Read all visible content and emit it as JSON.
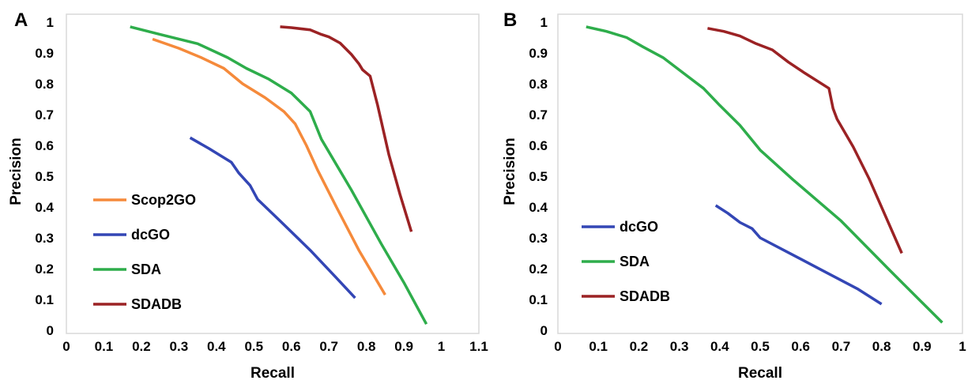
{
  "chart_data": [
    {
      "type": "line",
      "panel_label": "A",
      "xlabel": "Recall",
      "ylabel": "Precision",
      "xlim": [
        0,
        1.1
      ],
      "ylim": [
        0,
        1
      ],
      "x_ticks": [
        "0",
        "0.1",
        "0.2",
        "0.3",
        "0.4",
        "0.5",
        "0.6",
        "0.7",
        "0.8",
        "0.9",
        "1",
        "1.1"
      ],
      "y_ticks": [
        "0",
        "0.1",
        "0.2",
        "0.3",
        "0.4",
        "0.5",
        "0.6",
        "0.7",
        "0.8",
        "0.9",
        "1"
      ],
      "grid": false,
      "legend_position": "lower-left",
      "series": [
        {
          "name": "Scop2GO",
          "color": "#f58a3b",
          "points": [
            [
              0.23,
              0.945
            ],
            [
              0.3,
              0.915
            ],
            [
              0.36,
              0.885
            ],
            [
              0.42,
              0.85
            ],
            [
              0.47,
              0.8
            ],
            [
              0.53,
              0.755
            ],
            [
              0.58,
              0.71
            ],
            [
              0.61,
              0.67
            ],
            [
              0.64,
              0.6
            ],
            [
              0.67,
              0.52
            ],
            [
              0.72,
              0.4
            ],
            [
              0.78,
              0.26
            ],
            [
              0.85,
              0.115
            ]
          ]
        },
        {
          "name": "dcGO",
          "color": "#3346b5",
          "points": [
            [
              0.33,
              0.625
            ],
            [
              0.38,
              0.59
            ],
            [
              0.44,
              0.545
            ],
            [
              0.46,
              0.51
            ],
            [
              0.49,
              0.47
            ],
            [
              0.51,
              0.425
            ],
            [
              0.57,
              0.355
            ],
            [
              0.65,
              0.26
            ],
            [
              0.72,
              0.17
            ],
            [
              0.77,
              0.105
            ]
          ]
        },
        {
          "name": "SDA",
          "color": "#2ead4b",
          "points": [
            [
              0.17,
              0.985
            ],
            [
              0.25,
              0.96
            ],
            [
              0.35,
              0.93
            ],
            [
              0.43,
              0.885
            ],
            [
              0.48,
              0.85
            ],
            [
              0.54,
              0.815
            ],
            [
              0.6,
              0.77
            ],
            [
              0.65,
              0.71
            ],
            [
              0.68,
              0.62
            ],
            [
              0.76,
              0.455
            ],
            [
              0.84,
              0.28
            ],
            [
              0.9,
              0.155
            ],
            [
              0.96,
              0.02
            ]
          ]
        },
        {
          "name": "SDADB",
          "color": "#9b2224",
          "points": [
            [
              0.57,
              0.985
            ],
            [
              0.6,
              0.982
            ],
            [
              0.65,
              0.975
            ],
            [
              0.68,
              0.96
            ],
            [
              0.7,
              0.952
            ],
            [
              0.73,
              0.932
            ],
            [
              0.76,
              0.895
            ],
            [
              0.78,
              0.865
            ],
            [
              0.79,
              0.845
            ],
            [
              0.81,
              0.825
            ],
            [
              0.83,
              0.73
            ],
            [
              0.86,
              0.57
            ],
            [
              0.89,
              0.44
            ],
            [
              0.92,
              0.32
            ]
          ]
        }
      ]
    },
    {
      "type": "line",
      "panel_label": "B",
      "xlabel": "Recall",
      "ylabel": "Precision",
      "xlim": [
        0,
        1
      ],
      "ylim": [
        0,
        1
      ],
      "x_ticks": [
        "0",
        "0.1",
        "0.2",
        "0.3",
        "0.4",
        "0.5",
        "0.6",
        "0.7",
        "0.8",
        "0.9",
        "1"
      ],
      "y_ticks": [
        "0",
        "0.1",
        "0.2",
        "0.3",
        "0.4",
        "0.5",
        "0.6",
        "0.7",
        "0.8",
        "0.9",
        "1"
      ],
      "grid": false,
      "legend_position": "lower-left",
      "series": [
        {
          "name": "dcGO",
          "color": "#3346b5",
          "points": [
            [
              0.39,
              0.405
            ],
            [
              0.42,
              0.38
            ],
            [
              0.45,
              0.35
            ],
            [
              0.48,
              0.33
            ],
            [
              0.5,
              0.3
            ],
            [
              0.58,
              0.245
            ],
            [
              0.66,
              0.19
            ],
            [
              0.74,
              0.135
            ],
            [
              0.8,
              0.085
            ]
          ]
        },
        {
          "name": "SDA",
          "color": "#2ead4b",
          "points": [
            [
              0.07,
              0.985
            ],
            [
              0.12,
              0.97
            ],
            [
              0.17,
              0.95
            ],
            [
              0.21,
              0.92
            ],
            [
              0.26,
              0.885
            ],
            [
              0.31,
              0.835
            ],
            [
              0.36,
              0.785
            ],
            [
              0.4,
              0.73
            ],
            [
              0.45,
              0.665
            ],
            [
              0.5,
              0.585
            ],
            [
              0.58,
              0.49
            ],
            [
              0.7,
              0.355
            ],
            [
              0.82,
              0.195
            ],
            [
              0.95,
              0.025
            ]
          ]
        },
        {
          "name": "SDADB",
          "color": "#9b2224",
          "points": [
            [
              0.37,
              0.98
            ],
            [
              0.41,
              0.97
            ],
            [
              0.45,
              0.955
            ],
            [
              0.49,
              0.93
            ],
            [
              0.53,
              0.91
            ],
            [
              0.57,
              0.87
            ],
            [
              0.61,
              0.835
            ],
            [
              0.67,
              0.785
            ],
            [
              0.68,
              0.72
            ],
            [
              0.69,
              0.685
            ],
            [
              0.73,
              0.595
            ],
            [
              0.77,
              0.49
            ],
            [
              0.81,
              0.37
            ],
            [
              0.85,
              0.25
            ]
          ]
        }
      ]
    }
  ]
}
